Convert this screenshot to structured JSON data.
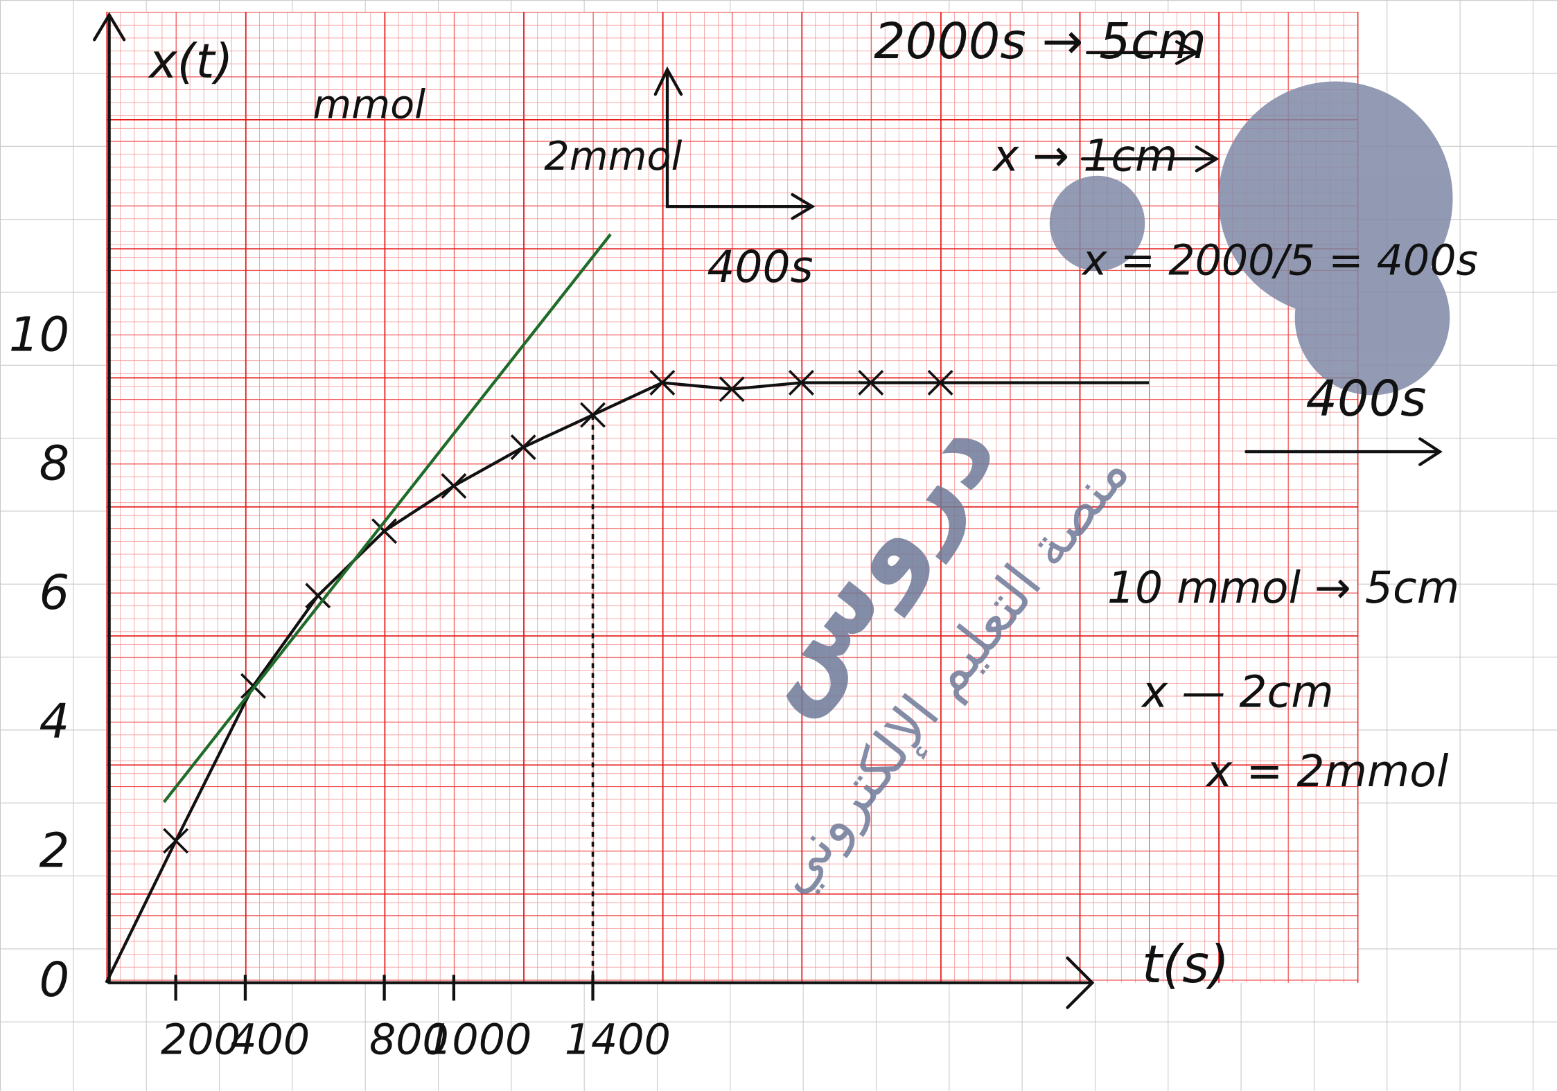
{
  "chart_data": {
    "type": "line",
    "y_label": "x(t)",
    "y_unit": "mmol",
    "x_label": "t(s)",
    "xlim": [
      0,
      3600
    ],
    "ylim": [
      0,
      15
    ],
    "xticks": [
      200,
      400,
      800,
      1000,
      1400
    ],
    "yticks": [
      0,
      2,
      4,
      6,
      8,
      10
    ],
    "series": [
      {
        "color": "#111111",
        "marker": "none",
        "x": [
          0,
          200,
          423,
          609,
          800,
          1000,
          1200,
          1400,
          1600,
          1800,
          2000,
          2200,
          2400,
          3000
        ],
        "values": [
          0,
          2.2,
          4.6,
          6.0,
          7.0,
          7.7,
          8.3,
          8.8,
          9.3,
          9.2,
          9.3,
          9.3,
          9.3,
          9.3
        ]
      },
      {
        "color": "#111111",
        "marker": "x",
        "x": [
          200,
          423,
          609,
          800,
          1000,
          1200,
          1400,
          1600,
          1800,
          2000,
          2200,
          2400
        ],
        "values": [
          2.2,
          4.6,
          6.0,
          7.0,
          7.7,
          8.3,
          8.8,
          9.3,
          9.2,
          9.3,
          9.3,
          9.3
        ]
      }
    ],
    "tangent": {
      "color": "#1e6b2a",
      "x": [
        166,
        1451
      ],
      "values": [
        2.8,
        11.6
      ]
    },
    "annotations": [
      "2000s → 5cm",
      "2mmol",
      "400s",
      "x → 1cm",
      "x = 2000/5 = 400s",
      "400s",
      "10 mmol → 5cm",
      "x — 2cm",
      "x = 2mmol"
    ],
    "watermark": [
      "دروس",
      "منصة التعليم الإلكتروني"
    ]
  }
}
